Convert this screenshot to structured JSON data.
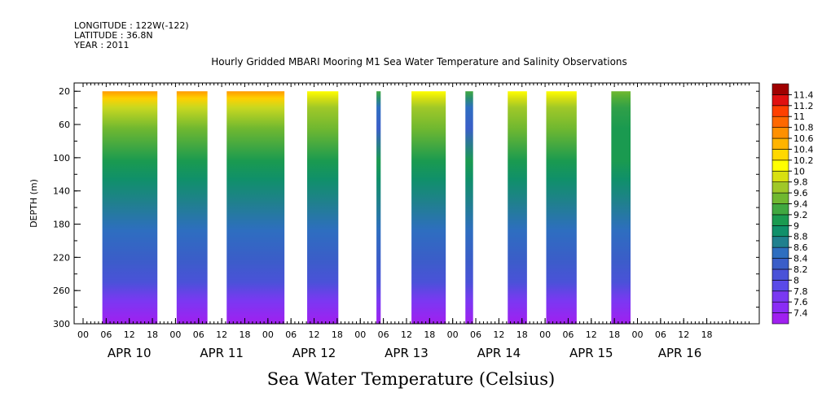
{
  "header": {
    "longitude": "LONGITUDE : 122W(-122)",
    "latitude": "LATITUDE : 36.8N",
    "year": "YEAR : 2011"
  },
  "chart_data": {
    "type": "heatmap",
    "title": "Hourly Gridded MBARI Mooring M1 Sea Water Temperature and Salinity Observations",
    "xlabel": "Sea Water Temperature (Celsius)",
    "ylabel": "DEPTH (m)",
    "y_range": [
      300,
      10
    ],
    "y_ticks": [
      20,
      60,
      100,
      140,
      180,
      220,
      260,
      300
    ],
    "x_range_hours": [
      0,
      173
    ],
    "x_hour_ticks": [
      {
        "hour": 0,
        "label": "00"
      },
      {
        "hour": 6,
        "label": "06"
      },
      {
        "hour": 12,
        "label": "12"
      },
      {
        "hour": 18,
        "label": "18"
      },
      {
        "hour": 24,
        "label": "00"
      },
      {
        "hour": 30,
        "label": "06"
      },
      {
        "hour": 36,
        "label": "12"
      },
      {
        "hour": 42,
        "label": "18"
      },
      {
        "hour": 48,
        "label": "00"
      },
      {
        "hour": 54,
        "label": "06"
      },
      {
        "hour": 60,
        "label": "12"
      },
      {
        "hour": 66,
        "label": "18"
      },
      {
        "hour": 72,
        "label": "00"
      },
      {
        "hour": 78,
        "label": "06"
      },
      {
        "hour": 84,
        "label": "12"
      },
      {
        "hour": 90,
        "label": "18"
      },
      {
        "hour": 96,
        "label": "00"
      },
      {
        "hour": 102,
        "label": "06"
      },
      {
        "hour": 108,
        "label": "12"
      },
      {
        "hour": 114,
        "label": "18"
      },
      {
        "hour": 120,
        "label": "00"
      },
      {
        "hour": 126,
        "label": "06"
      },
      {
        "hour": 132,
        "label": "12"
      },
      {
        "hour": 138,
        "label": "18"
      },
      {
        "hour": 144,
        "label": "00"
      },
      {
        "hour": 150,
        "label": "06"
      },
      {
        "hour": 156,
        "label": "12"
      },
      {
        "hour": 162,
        "label": "18"
      }
    ],
    "x_day_labels": [
      {
        "hour": 12,
        "label": "APR 10"
      },
      {
        "hour": 36,
        "label": "APR 11"
      },
      {
        "hour": 60,
        "label": "APR 12"
      },
      {
        "hour": 84,
        "label": "APR 13"
      },
      {
        "hour": 108,
        "label": "APR 14"
      },
      {
        "hour": 132,
        "label": "APR 15"
      },
      {
        "hour": 155,
        "label": "APR 16"
      }
    ],
    "data_segments": [
      {
        "start_hour": 5,
        "end_hour": 19.3,
        "surface": "warm"
      },
      {
        "start_hour": 24.3,
        "end_hour": 32.3,
        "surface": "warm"
      },
      {
        "start_hour": 37.3,
        "end_hour": 52.3,
        "surface": "warm"
      },
      {
        "start_hour": 58.2,
        "end_hour": 66.3,
        "surface": "yellow"
      },
      {
        "start_hour": 76.2,
        "end_hour": 77.3,
        "surface": "narrow"
      },
      {
        "start_hour": 85.3,
        "end_hour": 94.2,
        "surface": "yellow"
      },
      {
        "start_hour": 99.3,
        "end_hour": 101.3,
        "surface": "narrow"
      },
      {
        "start_hour": 110.3,
        "end_hour": 115.3,
        "surface": "yellow"
      },
      {
        "start_hour": 120.3,
        "end_hour": 128.2,
        "surface": "yellow"
      },
      {
        "start_hour": 137.2,
        "end_hour": 142.2,
        "surface": "green"
      }
    ],
    "colorbar": {
      "levels": [
        "7.4",
        "7.6",
        "7.8",
        "8",
        "8.2",
        "8.4",
        "8.6",
        "8.8",
        "9",
        "9.2",
        "9.4",
        "9.6",
        "9.8",
        "10",
        "10.2",
        "10.4",
        "10.6",
        "10.8",
        "11",
        "11.2",
        "11.4"
      ],
      "colors": [
        "#a020f0",
        "#8a2cf5",
        "#7a38f2",
        "#5a4ae8",
        "#4a52d8",
        "#3a5ec8",
        "#2e6ec0",
        "#20808e",
        "#10906a",
        "#1a9a50",
        "#40a840",
        "#70b830",
        "#a0c828",
        "#d8e010",
        "#ffff00",
        "#ffd800",
        "#ffb400",
        "#ff9000",
        "#ff6800",
        "#ff4000",
        "#e01010",
        "#a00000"
      ]
    }
  }
}
